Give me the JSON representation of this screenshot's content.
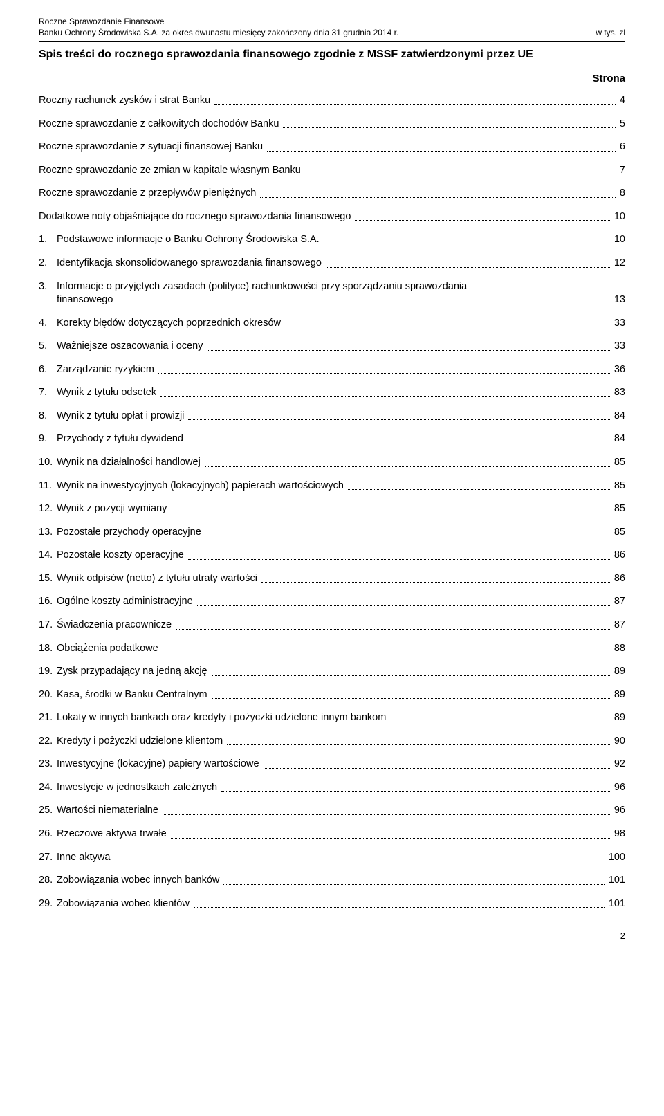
{
  "header": {
    "line1": "Roczne Sprawozdanie Finansowe",
    "line2": "Banku Ochrony Środowiska S.A. za okres dwunastu miesięcy zakończony dnia 31 grudnia 2014 r.",
    "unit": "w tys. zł"
  },
  "toc": {
    "title": "Spis treści do rocznego sprawozdania finansowego zgodnie z MSSF zatwierdzonymi przez UE",
    "page_col_label": "Strona",
    "intro_entries": [
      {
        "text": "Roczny rachunek zysków i strat Banku",
        "page": "4"
      },
      {
        "text": "Roczne sprawozdanie z całkowitych dochodów Banku",
        "page": "5"
      },
      {
        "text": "Roczne sprawozdanie z sytuacji finansowej Banku",
        "page": "6"
      },
      {
        "text": "Roczne sprawozdanie ze zmian w kapitale własnym Banku",
        "page": "7"
      },
      {
        "text": "Roczne sprawozdanie z przepływów pieniężnych",
        "page": "8"
      },
      {
        "text": "Dodatkowe noty objaśniające do rocznego sprawozdania finansowego",
        "page": "10"
      }
    ],
    "numbered_entries": [
      {
        "num": "1.",
        "text": "Podstawowe informacje o Banku Ochrony Środowiska S.A.",
        "page": "10"
      },
      {
        "num": "2.",
        "text": "Identyfikacja skonsolidowanego sprawozdania finansowego",
        "page": "12"
      },
      {
        "num": "3.",
        "text_line1": "Informacje o przyjętych zasadach (polityce) rachunkowości przy sporządzaniu sprawozdania",
        "text_line2": "finansowego",
        "page": "13",
        "multiline": true
      },
      {
        "num": "4.",
        "text": "Korekty błędów dotyczących poprzednich okresów",
        "page": "33"
      },
      {
        "num": "5.",
        "text": "Ważniejsze oszacowania i oceny",
        "page": "33"
      },
      {
        "num": "6.",
        "text": "Zarządzanie ryzykiem",
        "page": "36"
      },
      {
        "num": "7.",
        "text": "Wynik z tytułu odsetek",
        "page": "83"
      },
      {
        "num": "8.",
        "text": "Wynik z tytułu opłat i prowizji",
        "page": "84"
      },
      {
        "num": "9.",
        "text": "Przychody z tytułu dywidend",
        "page": "84"
      },
      {
        "num": "10.",
        "text": "Wynik na działalności handlowej",
        "page": "85"
      },
      {
        "num": "11.",
        "text": "Wynik na inwestycyjnych (lokacyjnych) papierach wartościowych",
        "page": "85"
      },
      {
        "num": "12.",
        "text": "Wynik z pozycji wymiany",
        "page": "85"
      },
      {
        "num": "13.",
        "text": "Pozostałe przychody operacyjne",
        "page": "85"
      },
      {
        "num": "14.",
        "text": "Pozostałe koszty operacyjne",
        "page": "86"
      },
      {
        "num": "15.",
        "text": "Wynik odpisów (netto) z tytułu utraty wartości",
        "page": "86"
      },
      {
        "num": "16.",
        "text": "Ogólne koszty administracyjne",
        "page": "87"
      },
      {
        "num": "17.",
        "text": "Świadczenia pracownicze",
        "page": "87"
      },
      {
        "num": "18.",
        "text": "Obciążenia podatkowe",
        "page": "88"
      },
      {
        "num": "19.",
        "text": "Zysk przypadający na jedną akcję",
        "page": "89"
      },
      {
        "num": "20.",
        "text": "Kasa, środki w Banku Centralnym",
        "page": "89"
      },
      {
        "num": "21.",
        "text": "Lokaty w innych bankach oraz kredyty i pożyczki udzielone innym bankom",
        "page": "89"
      },
      {
        "num": "22.",
        "text": "Kredyty i pożyczki udzielone klientom",
        "page": "90"
      },
      {
        "num": "23.",
        "text": "Inwestycyjne (lokacyjne) papiery wartościowe",
        "page": "92"
      },
      {
        "num": "24.",
        "text": "Inwestycje w jednostkach zależnych",
        "page": "96"
      },
      {
        "num": "25.",
        "text": "Wartości niematerialne",
        "page": "96"
      },
      {
        "num": "26.",
        "text": "Rzeczowe aktywa trwałe",
        "page": "98"
      },
      {
        "num": "27.",
        "text": "Inne aktywa",
        "page": "100"
      },
      {
        "num": "28.",
        "text": "Zobowiązania wobec innych banków",
        "page": "101"
      },
      {
        "num": "29.",
        "text": "Zobowiązania wobec klientów",
        "page": "101"
      }
    ]
  },
  "page_number": "2"
}
